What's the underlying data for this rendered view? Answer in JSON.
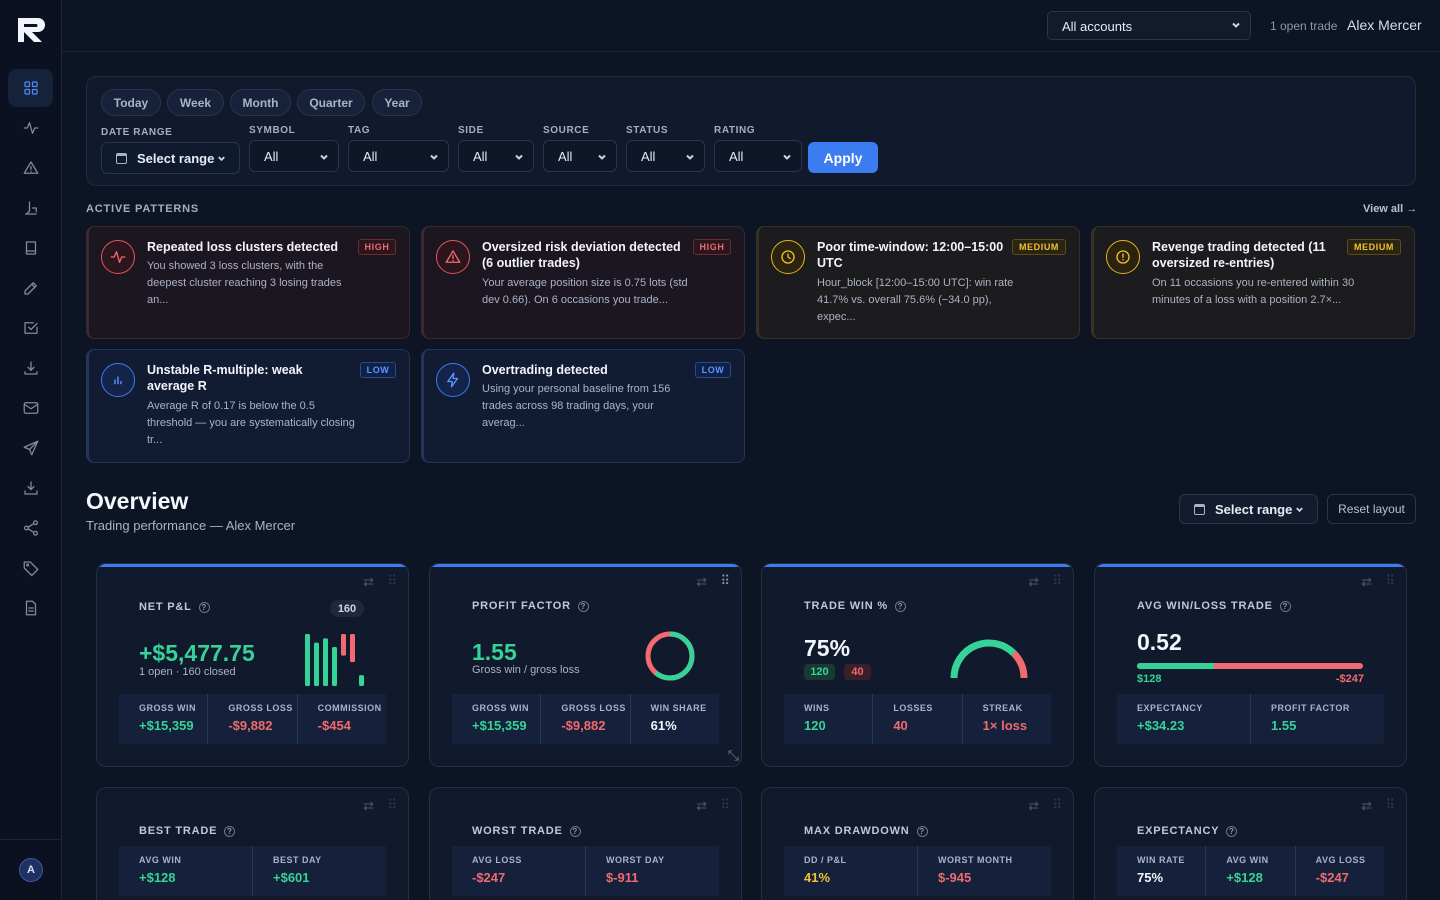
{
  "topbar": {
    "account_selected": "All accounts",
    "open_trade": "1 open trade",
    "user_name": "Alex Mercer"
  },
  "sidebar": {
    "items": [
      {
        "name": "dashboard-icon"
      },
      {
        "name": "activity-icon"
      },
      {
        "name": "alert-icon"
      },
      {
        "name": "scale-icon"
      },
      {
        "name": "book-icon"
      },
      {
        "name": "pen-icon"
      },
      {
        "name": "checkbox-icon"
      },
      {
        "name": "download-icon"
      },
      {
        "name": "mail-icon"
      },
      {
        "name": "send-icon"
      },
      {
        "name": "import-icon"
      },
      {
        "name": "share-icon"
      },
      {
        "name": "tag-icon"
      },
      {
        "name": "document-icon"
      }
    ],
    "avatar_initial": "A"
  },
  "filters": {
    "chips": [
      "Today",
      "Week",
      "Month",
      "Quarter",
      "Year"
    ],
    "date_range_label": "DATE RANGE",
    "date_range_value": "Select range",
    "symbol_label": "SYMBOL",
    "symbol_value": "All",
    "tag_label": "TAG",
    "tag_value": "All",
    "side_label": "SIDE",
    "side_value": "All",
    "source_label": "SOURCE",
    "source_value": "All",
    "status_label": "STATUS",
    "status_value": "All",
    "rating_label": "RATING",
    "rating_value": "All",
    "apply_label": "Apply"
  },
  "patterns": {
    "section_title": "ACTIVE PATTERNS",
    "view_all": "View all →",
    "cards": [
      {
        "severity": "HIGH",
        "icon": "activity-icon",
        "title": "Repeated loss clusters detected",
        "desc": "You showed 3 loss clusters, with the deepest cluster reaching 3 losing trades an..."
      },
      {
        "severity": "HIGH",
        "icon": "warning-icon",
        "title": "Oversized risk deviation detected (6 outlier trades)",
        "desc": "Your average position size is 0.75 lots (std dev 0.66). On 6 occasions you trade..."
      },
      {
        "severity": "MEDIUM",
        "icon": "clock-icon",
        "title": "Poor time-window: 12:00–15:00 UTC",
        "desc": "Hour_block [12:00–15:00 UTC]: win rate 41.7% vs. overall 75.6% (−34.0 pp), expec..."
      },
      {
        "severity": "MEDIUM",
        "icon": "alert-circle-icon",
        "title": "Revenge trading detected (11 oversized re-entries)",
        "desc": "On 11 occasions you re-entered within 30 minutes of a loss with a position 2.7×..."
      },
      {
        "severity": "LOW",
        "icon": "bar-chart-icon",
        "title": "Unstable R-multiple: weak average R",
        "desc": "Average R of 0.17 is below the 0.5 threshold — you are systematically closing tr..."
      },
      {
        "severity": "LOW",
        "icon": "lightning-icon",
        "title": "Overtrading detected",
        "desc": "Using your personal baseline from 156 trades across 98 trading days, your averag..."
      }
    ]
  },
  "overview": {
    "title": "Overview",
    "subtitle": "Trading performance — Alex Mercer",
    "range": "Select range",
    "reset": "Reset layout"
  },
  "metrics": {
    "net_pnl": {
      "label": "NET P&L",
      "count": "160",
      "value": "+$5,477.75",
      "sub": "1 open · 160 closed",
      "bars": [
        {
          "value": 48,
          "color": "#36d399"
        },
        {
          "value": 40,
          "color": "#36d399"
        },
        {
          "value": 44,
          "color": "#36d399"
        },
        {
          "value": 36,
          "color": "#36d399"
        },
        {
          "value": 20,
          "color": "#f06a6f"
        },
        {
          "value": 26,
          "color": "#f06a6f"
        },
        {
          "value": 10,
          "color": "#36d399"
        }
      ],
      "stats": [
        {
          "label": "GROSS WIN",
          "value": "+$15,359"
        },
        {
          "label": "GROSS LOSS",
          "value": "-$9,882"
        },
        {
          "label": "COMMISSION",
          "value": "-$454"
        }
      ]
    },
    "profit_factor": {
      "label": "PROFIT FACTOR",
      "value": "1.55",
      "sub": "Gross win / gross loss",
      "win_share_fraction": 0.61,
      "stats": [
        {
          "label": "GROSS WIN",
          "value": "+$15,359"
        },
        {
          "label": "GROSS LOSS",
          "value": "-$9,882"
        },
        {
          "label": "WIN SHARE",
          "value": "61%"
        }
      ]
    },
    "trade_win": {
      "label": "TRADE WIN %",
      "value": "75%",
      "wins_pill": "120",
      "losses_pill": "40",
      "win_fraction": 0.75,
      "stats": [
        {
          "label": "WINS",
          "value": "120"
        },
        {
          "label": "LOSSES",
          "value": "40"
        },
        {
          "label": "STREAK",
          "value": "1× loss"
        }
      ]
    },
    "avg_win_loss": {
      "label": "AVG WIN/LOSS TRADE",
      "value": "0.52",
      "win_amount": "$128",
      "loss_amount": "-$247",
      "win_fraction": 0.34,
      "stats": [
        {
          "label": "EXPECTANCY",
          "value": "+$34.23"
        },
        {
          "label": "PROFIT FACTOR",
          "value": "1.55"
        }
      ]
    },
    "best_trade": {
      "label": "BEST TRADE",
      "stats": [
        {
          "label": "AVG WIN",
          "value": "+$128"
        },
        {
          "label": "BEST DAY",
          "value": "+$601"
        }
      ]
    },
    "worst_trade": {
      "label": "WORST TRADE",
      "stats": [
        {
          "label": "AVG LOSS",
          "value": "-$247"
        },
        {
          "label": "WORST DAY",
          "value": "$-911"
        }
      ]
    },
    "max_drawdown": {
      "label": "MAX DRAWDOWN",
      "stats": [
        {
          "label": "DD / P&L",
          "value": "41%"
        },
        {
          "label": "WORST MONTH",
          "value": "$-945"
        }
      ]
    },
    "expectancy": {
      "label": "EXPECTANCY",
      "stats": [
        {
          "label": "WIN RATE",
          "value": "75%"
        },
        {
          "label": "AVG WIN",
          "value": "+$128"
        },
        {
          "label": "AVG LOSS",
          "value": "-$247"
        }
      ]
    }
  },
  "colors": {
    "accent": "#3b7cf0",
    "positive": "#36d399",
    "negative": "#f06a6f",
    "warning": "#f2c12f"
  }
}
